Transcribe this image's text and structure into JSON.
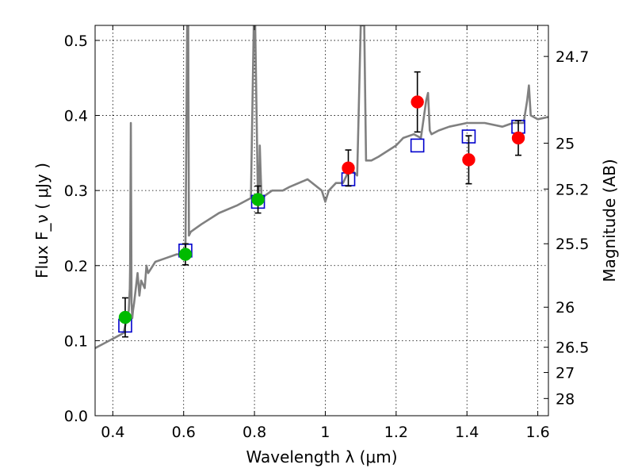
{
  "chart_data": {
    "type": "scatter",
    "xlabel": "Wavelength  λ (μm)",
    "ylabel": "Flux  F_ν  ( μJy )",
    "y2label": "Magnitude (AB)",
    "xlim": [
      0.35,
      1.63
    ],
    "ylim": [
      0.0,
      0.52
    ],
    "grid": true,
    "x_ticks": [
      {
        "value": 0.4,
        "label": "0.4"
      },
      {
        "value": 0.6,
        "label": "0.6"
      },
      {
        "value": 0.8,
        "label": "0.8"
      },
      {
        "value": 1.0,
        "label": "1"
      },
      {
        "value": 1.2,
        "label": "1.2"
      },
      {
        "value": 1.4,
        "label": "1.4"
      },
      {
        "value": 1.6,
        "label": "1.6"
      }
    ],
    "y_ticks": [
      {
        "value": 0.0,
        "label": "0.0"
      },
      {
        "value": 0.1,
        "label": "0.1"
      },
      {
        "value": 0.2,
        "label": "0.2"
      },
      {
        "value": 0.3,
        "label": "0.3"
      },
      {
        "value": 0.4,
        "label": "0.4"
      },
      {
        "value": 0.5,
        "label": "0.5"
      }
    ],
    "y2_ticks": [
      {
        "value": 24.7,
        "label": "24.7"
      },
      {
        "value": 25.0,
        "label": "25"
      },
      {
        "value": 25.2,
        "label": "25.2"
      },
      {
        "value": 25.5,
        "label": "25.5"
      },
      {
        "value": 26.0,
        "label": "26"
      },
      {
        "value": 26.5,
        "label": "26.5"
      },
      {
        "value": 27.0,
        "label": "27"
      },
      {
        "value": 28.0,
        "label": "28"
      }
    ],
    "colors": {
      "spectrum": "#808080",
      "model_box": "#0000cc",
      "green": "#00bb00",
      "red": "#ff0000",
      "errorbar": "#000000"
    },
    "series": [
      {
        "kind": "line",
        "color": "#808080",
        "x": [
          0.35,
          0.37,
          0.39,
          0.41,
          0.43,
          0.445,
          0.448,
          0.449,
          0.451,
          0.453,
          0.455,
          0.457,
          0.46,
          0.47,
          0.475,
          0.48,
          0.49,
          0.495,
          0.5,
          0.52,
          0.55,
          0.58,
          0.6,
          0.605,
          0.61,
          0.611,
          0.612,
          0.613,
          0.615,
          0.62,
          0.65,
          0.7,
          0.75,
          0.79,
          0.798,
          0.8,
          0.802,
          0.81,
          0.814,
          0.815,
          0.817,
          0.82,
          0.85,
          0.88,
          0.9,
          0.95,
          0.99,
          1.0,
          1.01,
          1.03,
          1.05,
          1.07,
          1.09,
          1.1,
          1.105,
          1.11,
          1.115,
          1.13,
          1.15,
          1.2,
          1.22,
          1.25,
          1.27,
          1.285,
          1.29,
          1.295,
          1.3,
          1.32,
          1.35,
          1.4,
          1.45,
          1.5,
          1.53,
          1.56,
          1.57,
          1.575,
          1.58,
          1.6,
          1.63
        ],
        "y": [
          0.09,
          0.095,
          0.1,
          0.105,
          0.11,
          0.14,
          0.17,
          0.2,
          0.39,
          0.15,
          0.13,
          0.14,
          0.15,
          0.19,
          0.16,
          0.18,
          0.17,
          0.2,
          0.19,
          0.205,
          0.21,
          0.215,
          0.215,
          0.22,
          0.52,
          0.52,
          0.52,
          0.52,
          0.24,
          0.245,
          0.255,
          0.27,
          0.28,
          0.29,
          0.52,
          0.52,
          0.52,
          0.28,
          0.33,
          0.36,
          0.33,
          0.29,
          0.3,
          0.3,
          0.305,
          0.315,
          0.3,
          0.285,
          0.3,
          0.31,
          0.31,
          0.33,
          0.32,
          0.52,
          0.52,
          0.52,
          0.34,
          0.34,
          0.345,
          0.36,
          0.37,
          0.375,
          0.37,
          0.42,
          0.43,
          0.38,
          0.375,
          0.38,
          0.385,
          0.39,
          0.39,
          0.385,
          0.39,
          0.39,
          0.42,
          0.44,
          0.4,
          0.395,
          0.398
        ]
      },
      {
        "kind": "open-square",
        "color": "#0000cc",
        "x": [
          0.435,
          0.605,
          0.81,
          1.065,
          1.26,
          1.405,
          1.545
        ],
        "y": [
          0.12,
          0.22,
          0.285,
          0.315,
          0.36,
          0.372,
          0.385
        ]
      },
      {
        "kind": "filled-circle",
        "color": "#00bb00",
        "x": [
          0.435,
          0.605,
          0.81
        ],
        "y": [
          0.131,
          0.215,
          0.288
        ],
        "yerr": [
          0.026,
          0.014,
          0.018
        ]
      },
      {
        "kind": "filled-circle",
        "color": "#ff0000",
        "x": [
          1.065,
          1.26,
          1.405,
          1.545
        ],
        "y": [
          0.33,
          0.418,
          0.341,
          0.37
        ],
        "yerr": [
          0.024,
          0.04,
          0.032,
          0.023
        ]
      }
    ]
  }
}
